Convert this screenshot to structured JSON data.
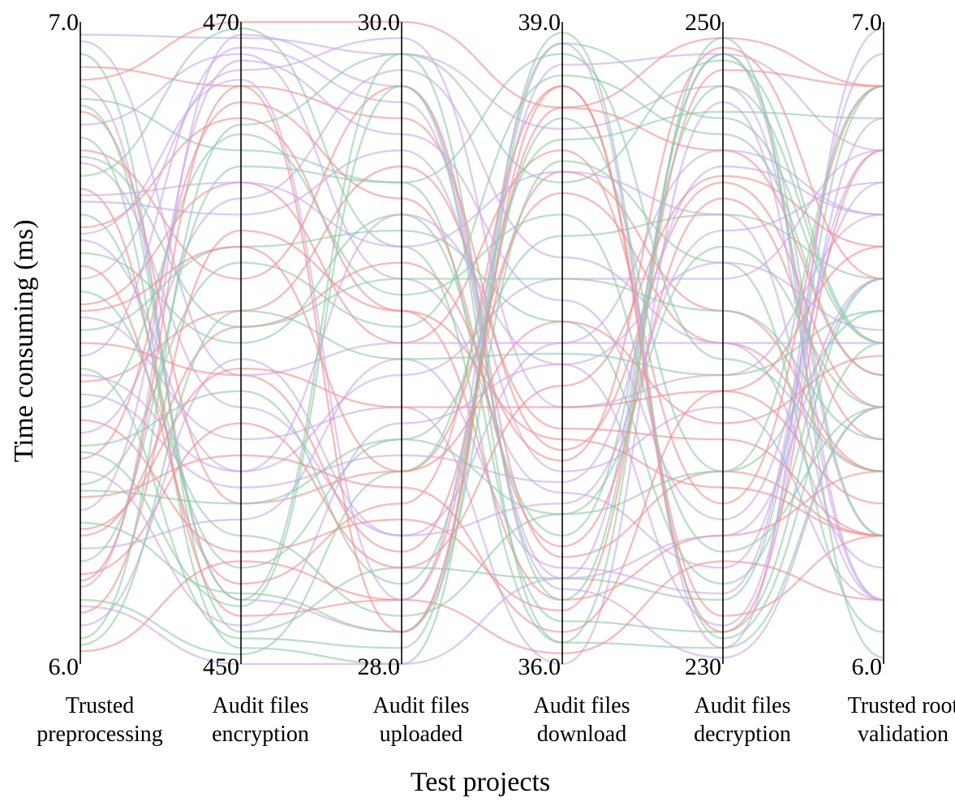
{
  "chart_data": {
    "type": "parallel-coordinates",
    "title": "",
    "xlabel": "Test projects",
    "ylabel": "Time consuming (ms)",
    "curve_style": "smooth",
    "grid": false,
    "axes": [
      {
        "label_lines": [
          "Trusted",
          "preprocessing"
        ],
        "range": [
          6.0,
          7.0
        ],
        "tick_labels": [
          "7.0",
          "6.0"
        ]
      },
      {
        "label_lines": [
          "Audit files",
          "encryption"
        ],
        "range": [
          450,
          470
        ],
        "tick_labels": [
          "470",
          "450"
        ]
      },
      {
        "label_lines": [
          "Audit files",
          "uploaded"
        ],
        "range": [
          28.0,
          30.0
        ],
        "tick_labels": [
          "30.0",
          "28.0"
        ]
      },
      {
        "label_lines": [
          "Audit files",
          "download"
        ],
        "range": [
          36.0,
          39.0
        ],
        "tick_labels": [
          "39.0",
          "36.0"
        ]
      },
      {
        "label_lines": [
          "Audit files",
          "decryption"
        ],
        "range": [
          230,
          250
        ],
        "tick_labels": [
          "250",
          "230"
        ]
      },
      {
        "label_lines": [
          "Trusted root",
          "validation"
        ],
        "range": [
          6.0,
          7.0
        ],
        "tick_labels": [
          "7.0",
          "6.0"
        ]
      }
    ],
    "groups": [
      {
        "color": "#c8a8ea"
      },
      {
        "color": "#8fcaa8"
      },
      {
        "color": "#ee8f8f"
      }
    ],
    "records": [
      [
        6.98,
        469.5,
        29.9,
        38.5,
        248,
        6.2
      ],
      [
        6.95,
        451,
        28.3,
        36.4,
        232,
        6.9
      ],
      [
        6.93,
        468,
        29.7,
        37.0,
        245,
        6.4
      ],
      [
        6.9,
        452,
        28.1,
        38.8,
        249,
        6.1
      ],
      [
        6.88,
        466,
        29.5,
        36.2,
        231,
        6.6
      ],
      [
        6.86,
        455,
        28.6,
        38.2,
        240,
        6.3
      ],
      [
        6.84,
        469,
        29.2,
        36.8,
        233,
        6.8
      ],
      [
        6.82,
        450.5,
        28.0,
        38.9,
        247,
        6.5
      ],
      [
        6.8,
        462,
        29.8,
        36.5,
        236,
        6.2
      ],
      [
        6.78,
        458,
        28.4,
        37.5,
        246,
        6.7
      ],
      [
        6.76,
        469.8,
        29.3,
        36.1,
        230.5,
        6.4
      ],
      [
        6.74,
        451.5,
        28.2,
        38.6,
        249.5,
        6.9
      ],
      [
        6.72,
        464,
        29.6,
        36.9,
        238,
        6.1
      ],
      [
        6.7,
        453,
        28.7,
        38.0,
        244,
        6.6
      ],
      [
        6.68,
        467,
        29.1,
        36.3,
        234,
        6.3
      ],
      [
        6.66,
        456,
        28.9,
        37.8,
        242,
        6.8
      ],
      [
        6.64,
        460,
        29.4,
        36.6,
        248,
        6.5
      ],
      [
        6.62,
        452.5,
        28.5,
        38.7,
        231.5,
        6.2
      ],
      [
        6.6,
        468.5,
        29.95,
        37.2,
        239,
        6.7
      ],
      [
        6.58,
        454,
        28.15,
        36.7,
        243,
        6.4
      ],
      [
        6.56,
        465,
        29.0,
        38.4,
        235,
        6.9
      ],
      [
        6.54,
        457,
        28.8,
        36.0,
        247.5,
        6.1
      ],
      [
        6.52,
        463,
        29.35,
        37.6,
        232.5,
        6.6
      ],
      [
        6.5,
        459,
        28.35,
        38.3,
        241,
        6.3
      ],
      [
        6.48,
        469.2,
        29.75,
        36.4,
        249,
        6.8
      ],
      [
        6.46,
        450.8,
        28.05,
        38.95,
        230.8,
        6.5
      ],
      [
        6.44,
        461,
        29.55,
        37.1,
        237,
        6.2
      ],
      [
        6.42,
        455.5,
        28.65,
        36.85,
        245.5,
        6.7
      ],
      [
        6.4,
        466.5,
        29.15,
        38.1,
        233.5,
        6.4
      ],
      [
        6.38,
        453.5,
        28.45,
        36.25,
        248.5,
        6.9
      ],
      [
        6.36,
        464.5,
        29.85,
        37.9,
        240,
        6.15
      ],
      [
        6.34,
        458.5,
        28.25,
        38.55,
        236,
        6.55
      ],
      [
        6.32,
        467.5,
        29.45,
        36.55,
        244.5,
        6.35
      ],
      [
        6.3,
        451.2,
        28.75,
        37.4,
        231.2,
        6.85
      ],
      [
        6.28,
        462.5,
        29.05,
        38.75,
        246.5,
        6.45
      ],
      [
        6.26,
        456.5,
        28.55,
        36.15,
        238.5,
        6.25
      ],
      [
        6.24,
        468.8,
        29.65,
        37.7,
        234.5,
        6.75
      ],
      [
        6.22,
        452.2,
        28.1,
        38.35,
        242.5,
        6.05
      ],
      [
        6.2,
        460.5,
        29.25,
        36.95,
        249.2,
        6.6
      ],
      [
        6.18,
        454.5,
        28.95,
        36.45,
        232.2,
        6.95
      ],
      [
        6.16,
        465.5,
        29.5,
        38.85,
        239.5,
        6.3
      ],
      [
        6.14,
        457.5,
        28.3,
        37.3,
        245.2,
        6.65
      ],
      [
        6.12,
        469.6,
        29.8,
        36.35,
        230.2,
        6.4
      ],
      [
        6.1,
        450.3,
        28.6,
        38.45,
        247.2,
        6.85
      ],
      [
        6.08,
        463.5,
        29.1,
        37.05,
        235.5,
        6.2
      ],
      [
        6.06,
        459.5,
        28.4,
        36.75,
        243.5,
        6.75
      ],
      [
        6.04,
        466.8,
        29.9,
        38.25,
        248.8,
        6.5
      ],
      [
        6.02,
        453.2,
        28.2,
        36.05,
        233.2,
        6.1
      ],
      [
        6.97,
        459,
        29.0,
        37.5,
        240,
        6.5
      ],
      [
        6.03,
        461,
        28.95,
        37.45,
        239,
        6.55
      ],
      [
        6.91,
        470,
        30.0,
        38.6,
        246,
        6.45
      ],
      [
        6.09,
        450,
        28.0,
        36.4,
        234,
        6.6
      ],
      [
        6.79,
        460.5,
        29.2,
        37.8,
        241,
        6.35
      ],
      [
        6.21,
        459.2,
        28.8,
        37.2,
        238.5,
        6.65
      ],
      [
        6.67,
        468.2,
        28.2,
        38.9,
        230.5,
        6.99
      ],
      [
        6.33,
        451.8,
        29.8,
        36.1,
        249.5,
        6.01
      ],
      [
        6.55,
        463,
        28.6,
        37.6,
        237.5,
        6.48
      ],
      [
        6.45,
        456,
        29.4,
        37.4,
        242.5,
        6.52
      ],
      [
        6.87,
        452,
        29.9,
        36.3,
        249,
        6.2
      ],
      [
        6.13,
        468,
        28.1,
        38.7,
        231,
        6.8
      ],
      [
        6.73,
        465,
        29.3,
        38.3,
        244,
        6.1
      ],
      [
        6.27,
        455,
        28.7,
        36.7,
        236,
        6.9
      ]
    ]
  }
}
